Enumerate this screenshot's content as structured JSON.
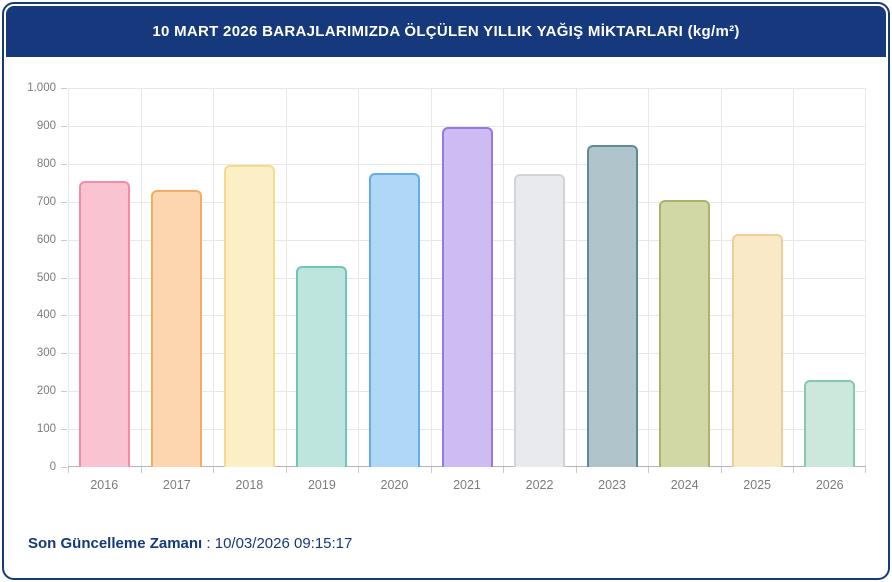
{
  "header": {
    "title": "10 MART 2026 BARAJLARIMIZDA ÖLÇÜLEN YILLIK YAĞIŞ MİKTARLARI (kg/m²)"
  },
  "footer": {
    "label": "Son Güncelleme Zamanı",
    "separator": " : ",
    "value": "10/03/2026 09:15:17"
  },
  "colors": {
    "navy": "#16397E",
    "grid": "#E8E8E8",
    "axis": "#B5B5B5",
    "tick": "#C9C9C9",
    "tick_label": "#7C7C7C"
  },
  "chart_data": {
    "type": "bar",
    "title": "10 MART 2026 BARAJLARIMIZDA ÖLÇÜLEN YILLIK YAĞIŞ MİKTARLARI (kg/m²)",
    "xlabel": "",
    "ylabel": "",
    "categories": [
      "2016",
      "2017",
      "2018",
      "2019",
      "2020",
      "2021",
      "2022",
      "2023",
      "2024",
      "2025",
      "2026"
    ],
    "values": [
      755,
      732,
      797,
      531,
      777,
      898,
      773,
      849,
      705,
      616,
      230
    ],
    "ylim": [
      0,
      1000
    ],
    "ytick_step": 100,
    "ytick_labels": [
      "0",
      "100",
      "200",
      "300",
      "400",
      "500",
      "600",
      "700",
      "800",
      "900",
      "1.000"
    ],
    "grid": true,
    "legend": "none",
    "fill_colors": [
      "#FAC3D1",
      "#FBD6AE",
      "#FDEFC5",
      "#BEE5DD",
      "#AFD8F6",
      "#CDBBF3",
      "#E9EAED",
      "#AFC5CB",
      "#D2D7A6",
      "#FAE9C6",
      "#CCE7DC"
    ],
    "border_colors": [
      "#F78BA5",
      "#F5AC62",
      "#F6DA8D",
      "#70C4B9",
      "#63ACEB",
      "#9877DF",
      "#D2D3D8",
      "#5D8A96",
      "#ACB268",
      "#EDD096",
      "#8AC6AE"
    ]
  }
}
